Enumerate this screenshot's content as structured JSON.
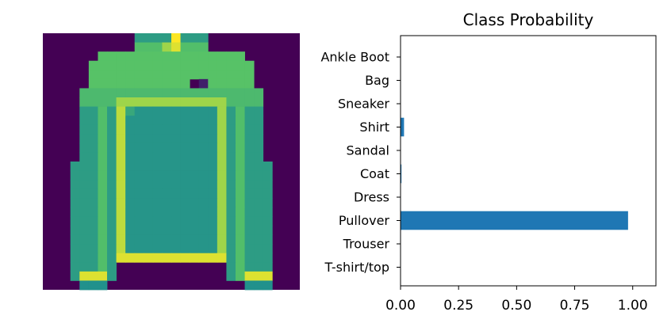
{
  "image_panel": {
    "colormap_low": "#440154",
    "colormap_mid": "#21918c",
    "colormap_high": "#fde725",
    "description_icon": "pullover-image"
  },
  "chart_data": {
    "type": "bar",
    "orientation": "horizontal",
    "title": "Class Probability",
    "categories": [
      "T-shirt/top",
      "Trouser",
      "Pullover",
      "Dress",
      "Coat",
      "Sandal",
      "Shirt",
      "Sneaker",
      "Bag",
      "Ankle Boot"
    ],
    "values": [
      0.0005,
      0.0001,
      0.98,
      0.0008,
      0.004,
      0.0001,
      0.015,
      0.0001,
      0.0003,
      0.0001
    ],
    "xlim": [
      0,
      1.1
    ],
    "xticks": [
      0.0,
      0.25,
      0.5,
      0.75,
      1.0
    ],
    "xtick_labels": [
      "0.00",
      "0.25",
      "0.50",
      "0.75",
      "1.00"
    ],
    "bar_color": "#1f77b4",
    "grid": false
  }
}
